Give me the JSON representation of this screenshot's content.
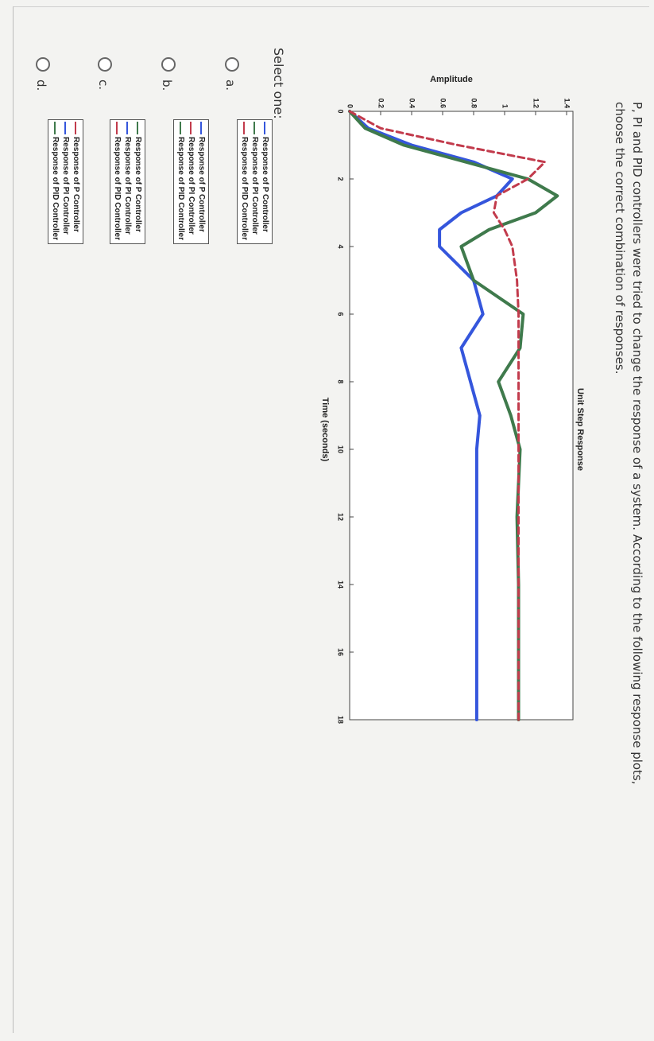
{
  "question": {
    "lines": [
      "P, PI and PID controllers were tried to change the response of a system. According to the following response plots,",
      "choose the correct combination of responses."
    ]
  },
  "chart_data": {
    "type": "line",
    "title": "Unit Step Response",
    "x_label": "Time (seconds)",
    "y_label": "Amplitude",
    "x": [
      0,
      0.5,
      1,
      1.5,
      2,
      2.5,
      3,
      3.5,
      4,
      5,
      6,
      7,
      8,
      9,
      10,
      12,
      14,
      16,
      18
    ],
    "series": [
      {
        "color": "#3556dc",
        "style": "solid",
        "values": [
          0,
          0.12,
          0.4,
          0.8,
          1.05,
          0.95,
          0.72,
          0.58,
          0.58,
          0.8,
          0.86,
          0.72,
          0.78,
          0.84,
          0.82,
          0.82,
          0.82,
          0.82,
          0.82
        ]
      },
      {
        "color": "#3f7a4c",
        "style": "solid",
        "values": [
          0,
          0.1,
          0.35,
          0.75,
          1.15,
          1.34,
          1.2,
          0.9,
          0.72,
          0.8,
          1.12,
          1.1,
          0.96,
          1.04,
          1.1,
          1.08,
          1.09,
          1.09,
          1.09
        ]
      },
      {
        "color": "#c23b4c",
        "style": "dashed",
        "values": [
          0,
          0.2,
          0.7,
          1.26,
          1.15,
          0.95,
          0.93,
          1.0,
          1.05,
          1.08,
          1.09,
          1.09,
          1.09,
          1.09,
          1.09,
          1.09,
          1.09,
          1.09,
          1.09
        ]
      }
    ],
    "xlim": [
      0,
      18
    ],
    "xticks": [
      0,
      2,
      4,
      6,
      8,
      10,
      12,
      14,
      16,
      18
    ],
    "ylim": [
      0,
      1.4
    ],
    "yticks": [
      0,
      0.2,
      0.4,
      0.6,
      0.8,
      1,
      1.2,
      1.4
    ]
  },
  "select_label": "Select one:",
  "options": [
    {
      "letter": "a.",
      "legend": [
        {
          "label": "Response of P Controller",
          "color": "#3556dc"
        },
        {
          "label": "Response of PI Controller",
          "color": "#3f7a4c"
        },
        {
          "label": "Response of PID Controller",
          "color": "#c23b4c"
        }
      ]
    },
    {
      "letter": "b.",
      "legend": [
        {
          "label": "Response of P Controller",
          "color": "#3556dc"
        },
        {
          "label": "Response of PI Controller",
          "color": "#c23b4c"
        },
        {
          "label": "Response of PID Controller",
          "color": "#3f7a4c"
        }
      ]
    },
    {
      "letter": "c.",
      "legend": [
        {
          "label": "Response of P Controller",
          "color": "#3f7a4c"
        },
        {
          "label": "Response of PI Controller",
          "color": "#3556dc"
        },
        {
          "label": "Response of PID Controller",
          "color": "#c23b4c"
        }
      ]
    },
    {
      "letter": "d.",
      "legend": [
        {
          "label": "Response of P Controller",
          "color": "#c23b4c"
        },
        {
          "label": "Response of PI Controller",
          "color": "#3556dc"
        },
        {
          "label": "Response of PID Controller",
          "color": "#3f7a4c"
        }
      ]
    }
  ]
}
